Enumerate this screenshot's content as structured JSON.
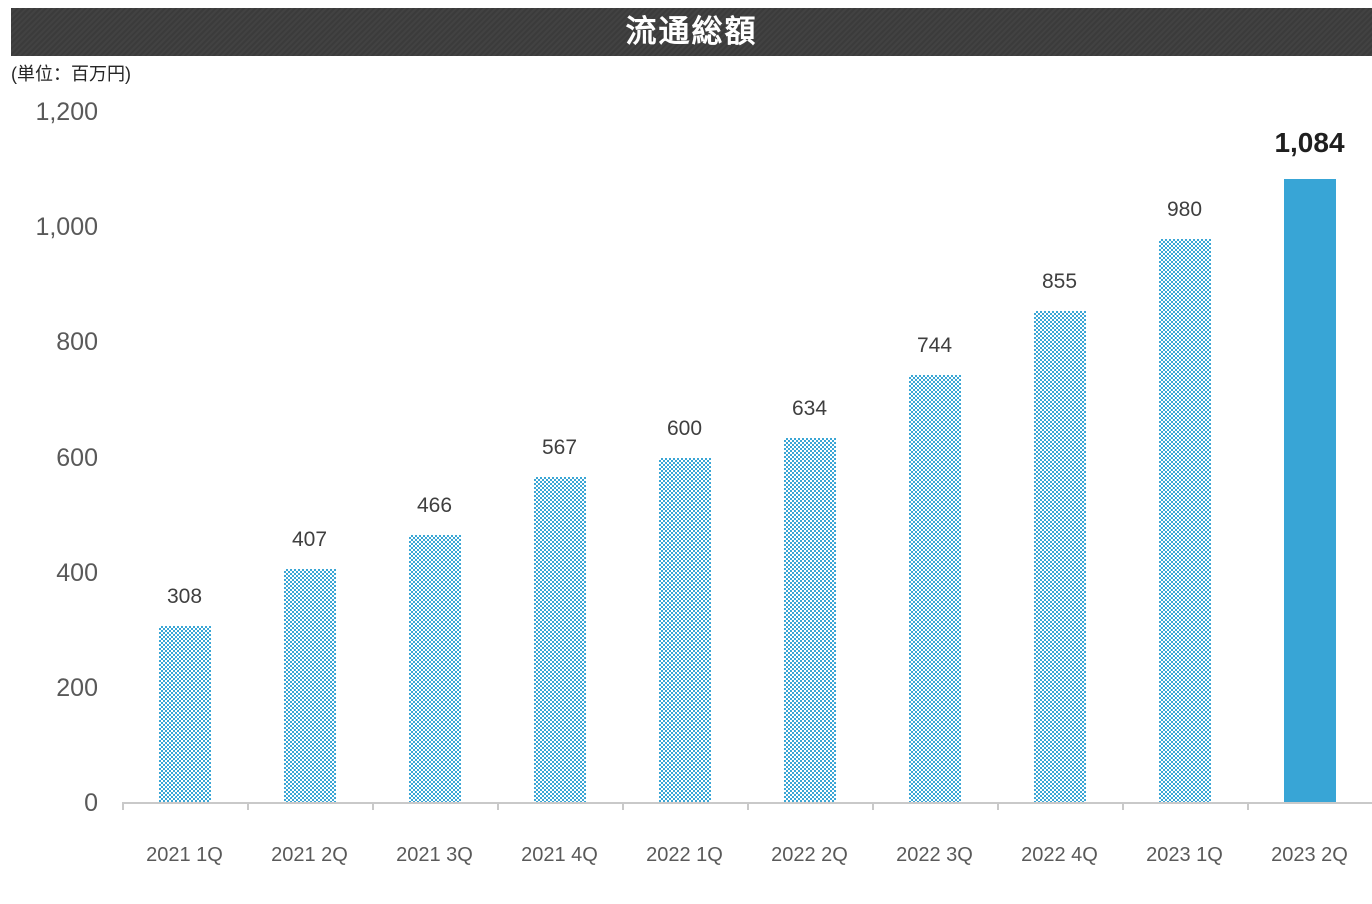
{
  "title_bar": {
    "title": "流通総額"
  },
  "unit_label": "(単位：百万円)",
  "chart_data": {
    "type": "bar",
    "title": "流通総額",
    "unit": "百万円",
    "categories": [
      "2021 1Q",
      "2021 2Q",
      "2021 3Q",
      "2021 4Q",
      "2022 1Q",
      "2022 2Q",
      "2022 3Q",
      "2022 4Q",
      "2023 1Q",
      "2023 2Q"
    ],
    "values": [
      308,
      407,
      466,
      567,
      600,
      634,
      744,
      855,
      980,
      1084
    ],
    "value_labels": [
      "308",
      "407",
      "466",
      "567",
      "600",
      "634",
      "744",
      "855",
      "980",
      "1,084"
    ],
    "ylim": [
      0,
      1200
    ],
    "yticks": [
      0,
      200,
      400,
      600,
      800,
      1000,
      1200
    ],
    "ytick_labels": [
      "0",
      "200",
      "400",
      "600",
      "800",
      "1,000",
      "1,200"
    ],
    "grid": false,
    "legend": "none",
    "xlabel": "",
    "ylabel": "(単位：百万円)",
    "bar_style": "dotted-pattern",
    "highlight_index": 9,
    "highlight_bar_style": "solid"
  },
  "colors": {
    "background": "#ffffff",
    "header_bg": "#3b3b3b",
    "header_stripe": "#424242",
    "header_text": "#ffffff",
    "bar_pattern": "#3ba6d5",
    "bar_solid": "#38a5d6",
    "axis_line": "#c9c9c9",
    "axis_text": "#595959",
    "value_text": "#3f3f3f",
    "highlight_value_text": "#1f1f1f",
    "unit_text": "#262626"
  }
}
